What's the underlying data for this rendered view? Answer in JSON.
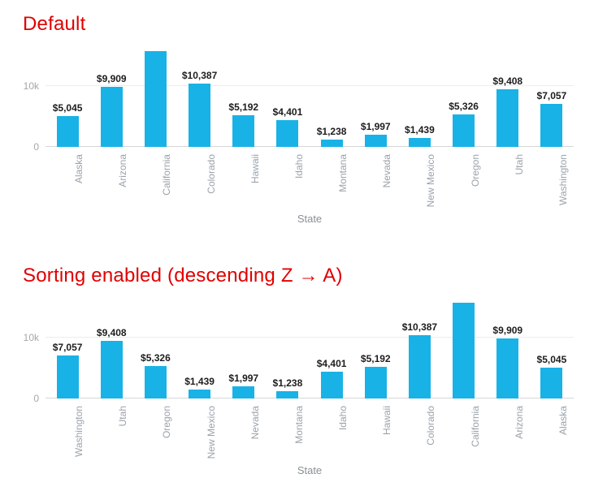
{
  "page": {
    "background": "#ffffff"
  },
  "styles": {
    "title_color": "#e00000",
    "bar_color": "#19b2e6",
    "value_label_color": "#1d1d1d",
    "tick_label_color": "#9aa2ab",
    "ytick_label_color": "#a6a6a6",
    "axis_title_color": "#8a9096",
    "gridline_color": "#ececec",
    "axis_line_color": "#d6d6d6"
  },
  "chart_data": [
    {
      "type": "bar",
      "title": "Default",
      "xlabel": "State",
      "ylabel": "",
      "ylim": [
        0,
        16700
      ],
      "grid": "horizontal at 10k only",
      "legend": "none",
      "yticks": [
        {
          "value": 0,
          "label": "0",
          "gridline": false
        },
        {
          "value": 10000,
          "label": "10k",
          "gridline": true
        }
      ],
      "categories": [
        "Alaska",
        "Arizona",
        "California",
        "Colorado",
        "Hawaii",
        "Idaho",
        "Montana",
        "Nevada",
        "New Mexico",
        "Oregon",
        "Utah",
        "Washington"
      ],
      "values": [
        5045,
        9909,
        15700,
        10387,
        5192,
        4401,
        1238,
        1997,
        1439,
        5326,
        9408,
        7057
      ],
      "bar_labels": [
        "$5,045",
        "$9,909",
        "",
        "$10,387",
        "$5,192",
        "$4,401",
        "$1,238",
        "$1,997",
        "$1,439",
        "$5,326",
        "$9,408",
        "$7,057"
      ]
    },
    {
      "type": "bar",
      "title": "Sorting enabled (descending Z → A)",
      "xlabel": "State",
      "ylabel": "",
      "ylim": [
        0,
        16700
      ],
      "grid": "horizontal at 10k only",
      "legend": "none",
      "yticks": [
        {
          "value": 0,
          "label": "0",
          "gridline": false
        },
        {
          "value": 10000,
          "label": "10k",
          "gridline": true
        }
      ],
      "categories": [
        "Washington",
        "Utah",
        "Oregon",
        "New Mexico",
        "Nevada",
        "Montana",
        "Idaho",
        "Hawaii",
        "Colorado",
        "California",
        "Arizona",
        "Alaska"
      ],
      "values": [
        7057,
        9408,
        5326,
        1439,
        1997,
        1238,
        4401,
        5192,
        10387,
        15700,
        9909,
        5045
      ],
      "bar_labels": [
        "$7,057",
        "$9,408",
        "$5,326",
        "$1,439",
        "$1,997",
        "$1,238",
        "$4,401",
        "$5,192",
        "$10,387",
        "",
        "$9,909",
        "$5,045"
      ]
    }
  ]
}
